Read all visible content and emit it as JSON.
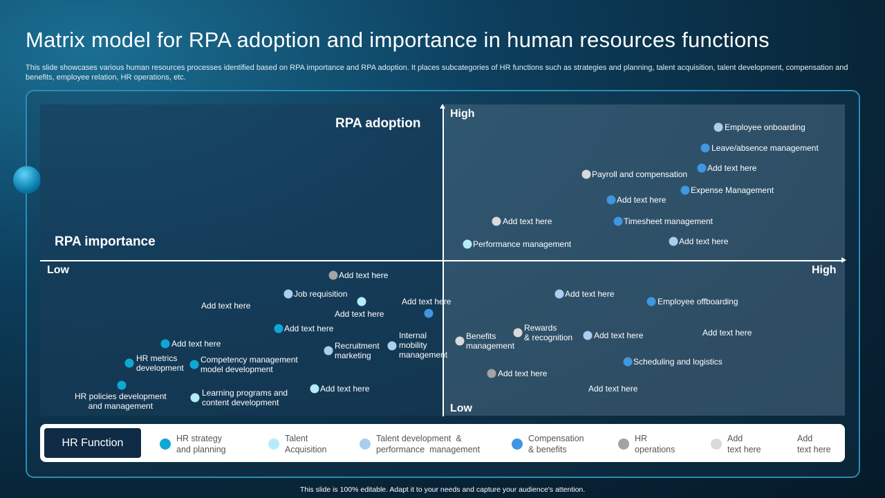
{
  "title": "Matrix model for RPA adoption and importance in human resources functions",
  "subtitle": "This slide showcases various human resources processes identified based on RPA importance and RPA adoption. It places subcategories of HR functions such as strategies and planning, talent acquisition, talent development, compensation and benefits, employee relation, HR operations, etc.",
  "axes": {
    "y_title": "RPA adoption",
    "x_title": "RPA importance",
    "y_high": "High",
    "y_low": "Low",
    "x_low": "Low",
    "x_high": "High"
  },
  "colors": {
    "hr_strategy": "#0ea8d4",
    "talent_acquisition": "#b5ecfa",
    "talent_development": "#a9cff0",
    "compensation": "#3f97e0",
    "hr_operations": "#a3a3a3",
    "add_text": "#dadada"
  },
  "points": [
    {
      "label": "Employee onboarding",
      "category": "talent_development"
    },
    {
      "label": "Leave/absence management",
      "category": "compensation"
    },
    {
      "label": "Add text here",
      "category": "compensation"
    },
    {
      "label": "Payroll and compensation",
      "category": "add_text"
    },
    {
      "label": "Expense Management",
      "category": "compensation"
    },
    {
      "label": "Add text here",
      "category": "compensation"
    },
    {
      "label": "Add text here",
      "category": "add_text"
    },
    {
      "label": "Timesheet management",
      "category": "compensation"
    },
    {
      "label": "Add text here",
      "category": "talent_development"
    },
    {
      "label": "Performance management",
      "category": "talent_acquisition"
    },
    {
      "label": "Add text here",
      "category": "hr_operations"
    },
    {
      "label": "Job requisition",
      "category": "talent_development"
    },
    {
      "label": "Add text here",
      "category": "talent_acquisition"
    },
    {
      "label": "Add text here",
      "category": null
    },
    {
      "label": "Add text here",
      "category": "compensation"
    },
    {
      "label": "Add text here",
      "category": "hr_strategy"
    },
    {
      "label": "Add text here",
      "category": "hr_strategy"
    },
    {
      "label": "HR metrics\ndevelopment",
      "category": "hr_strategy"
    },
    {
      "label": "Competency management\nmodel development",
      "category": "hr_strategy"
    },
    {
      "label": "Recruitment\nmarketing",
      "category": "talent_development"
    },
    {
      "label": "Internal\nmobility\nmanagement",
      "category": "talent_development"
    },
    {
      "label": "HR policies development\nand management",
      "category": "hr_strategy"
    },
    {
      "label": "Learning programs and\ncontent development",
      "category": "talent_acquisition"
    },
    {
      "label": "Add text here",
      "category": "talent_acquisition"
    },
    {
      "label": "Add text here",
      "category": "talent_development"
    },
    {
      "label": "Employee offboarding",
      "category": "compensation"
    },
    {
      "label": "Benefits\nmanagement",
      "category": "add_text"
    },
    {
      "label": "Rewards\n& recognition",
      "category": "add_text"
    },
    {
      "label": "Add text here",
      "category": "talent_development"
    },
    {
      "label": "Add text here",
      "category": null
    },
    {
      "label": "Scheduling and logistics",
      "category": "compensation"
    },
    {
      "label": "Add text here",
      "category": "hr_operations"
    },
    {
      "label": "Add text here",
      "category": null
    }
  ],
  "legend": {
    "heading": "HR Function",
    "items": [
      {
        "label": "HR strategy\nand planning",
        "category": "hr_strategy"
      },
      {
        "label": "Talent\nAcquisition",
        "category": "talent_acquisition"
      },
      {
        "label": "Talent development  &\nperformance  management",
        "category": "talent_development"
      },
      {
        "label": "Compensation\n& benefits",
        "category": "compensation"
      },
      {
        "label": "HR\noperations",
        "category": "hr_operations"
      },
      {
        "label": "Add\ntext here",
        "category": "add_text"
      },
      {
        "label": "Add\ntext here",
        "category": null
      }
    ]
  },
  "footer": "This slide is 100% editable.  Adapt it to your needs and capture your audience's attention."
}
